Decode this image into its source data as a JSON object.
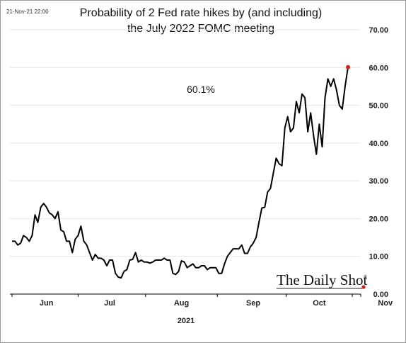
{
  "timestamp": "21-Nov-21 22:00",
  "brand": {
    "name": "The Daily Shot",
    "mark": "®"
  },
  "colors": {
    "line": "#000000",
    "marker": "#e01b1b",
    "grid": "#e6e6e6"
  },
  "chart_data": {
    "type": "line",
    "title": "Probability of 2 Fed rate hikes by (and including)",
    "subtitle": "the July 2022 FOMC meeting",
    "xlabel": "2021",
    "ylabel": "",
    "ylim": [
      0,
      70
    ],
    "yticks": [
      "0.00",
      "10.00",
      "20.00",
      "30.00",
      "40.00",
      "50.00",
      "60.00",
      "70.00"
    ],
    "grid": true,
    "y_axis_side": "right",
    "xticks": [
      {
        "label": "Jun",
        "x": 12
      },
      {
        "label": "Jul",
        "x": 34
      },
      {
        "label": "Aug",
        "x": 59
      },
      {
        "label": "Sep",
        "x": 84
      },
      {
        "label": "Oct",
        "x": 107
      },
      {
        "label": "Nov",
        "x": 130
      }
    ],
    "annotation": "60.1%",
    "last_value": 60.1,
    "series": [
      {
        "values": [
          [
            0,
            14
          ],
          [
            1,
            14
          ],
          [
            2,
            13
          ],
          [
            3,
            13.5
          ],
          [
            4,
            15.5
          ],
          [
            5,
            15
          ],
          [
            6,
            14
          ],
          [
            7,
            15.5
          ],
          [
            8,
            21
          ],
          [
            9,
            19
          ],
          [
            10,
            23
          ],
          [
            11,
            24
          ],
          [
            12,
            23
          ],
          [
            13,
            21.5
          ],
          [
            14,
            21
          ],
          [
            15,
            20
          ],
          [
            16,
            21.8
          ],
          [
            17,
            17
          ],
          [
            18,
            16.5
          ],
          [
            19,
            14
          ],
          [
            20,
            14
          ],
          [
            21,
            11
          ],
          [
            22,
            14.5
          ],
          [
            23,
            15.5
          ],
          [
            24,
            18
          ],
          [
            25,
            14
          ],
          [
            26,
            13
          ],
          [
            27,
            11
          ],
          [
            28,
            9
          ],
          [
            29,
            10.5
          ],
          [
            30,
            9.5
          ],
          [
            31,
            9.5
          ],
          [
            32,
            9
          ],
          [
            33,
            7.5
          ],
          [
            34,
            9
          ],
          [
            35,
            9
          ],
          [
            36,
            5.5
          ],
          [
            37,
            4.5
          ],
          [
            38,
            4.3
          ],
          [
            39,
            6
          ],
          [
            40,
            6.5
          ],
          [
            41,
            9
          ],
          [
            42,
            9.2
          ],
          [
            43,
            11
          ],
          [
            44,
            8.5
          ],
          [
            45,
            9
          ],
          [
            46,
            8.5
          ],
          [
            47,
            8.5
          ],
          [
            48,
            8.2
          ],
          [
            49,
            8.5
          ],
          [
            50,
            9
          ],
          [
            51,
            9
          ],
          [
            52,
            9
          ],
          [
            53,
            9.5
          ],
          [
            54,
            9
          ],
          [
            55,
            9
          ],
          [
            56,
            5.5
          ],
          [
            57,
            5.2
          ],
          [
            58,
            6
          ],
          [
            59,
            8.8
          ],
          [
            60,
            8.5
          ],
          [
            61,
            7
          ],
          [
            62,
            7.5
          ],
          [
            63,
            8
          ],
          [
            64,
            7
          ],
          [
            65,
            7
          ],
          [
            66,
            7.5
          ],
          [
            67,
            7.5
          ],
          [
            68,
            6.5
          ],
          [
            69,
            7
          ],
          [
            70,
            7
          ],
          [
            71,
            7
          ],
          [
            72,
            5.5
          ],
          [
            73,
            5.5
          ],
          [
            74,
            8
          ],
          [
            75,
            10
          ],
          [
            76,
            11
          ],
          [
            77,
            12
          ],
          [
            78,
            12
          ],
          [
            79,
            12
          ],
          [
            80,
            13
          ],
          [
            81,
            10.8
          ],
          [
            82,
            10.8
          ],
          [
            83,
            12.5
          ],
          [
            84,
            13.5
          ],
          [
            85,
            15
          ],
          [
            86,
            19
          ],
          [
            87,
            22.8
          ],
          [
            88,
            23
          ],
          [
            89,
            27
          ],
          [
            90,
            28
          ],
          [
            91,
            32
          ],
          [
            92,
            36
          ],
          [
            93,
            34.5
          ],
          [
            94,
            34
          ],
          [
            95,
            44
          ],
          [
            96,
            47
          ],
          [
            97,
            43
          ],
          [
            98,
            44
          ],
          [
            99,
            51
          ],
          [
            100,
            48
          ],
          [
            101,
            53
          ],
          [
            102,
            52
          ],
          [
            103,
            43
          ],
          [
            104,
            48
          ],
          [
            105,
            42
          ],
          [
            106,
            37
          ],
          [
            107,
            45
          ],
          [
            108,
            39
          ],
          [
            109,
            52
          ],
          [
            110,
            57
          ],
          [
            111,
            55
          ],
          [
            112,
            57
          ],
          [
            113,
            54
          ],
          [
            114,
            50
          ],
          [
            115,
            49
          ],
          [
            116,
            55
          ],
          [
            117,
            60.1
          ]
        ]
      }
    ]
  }
}
